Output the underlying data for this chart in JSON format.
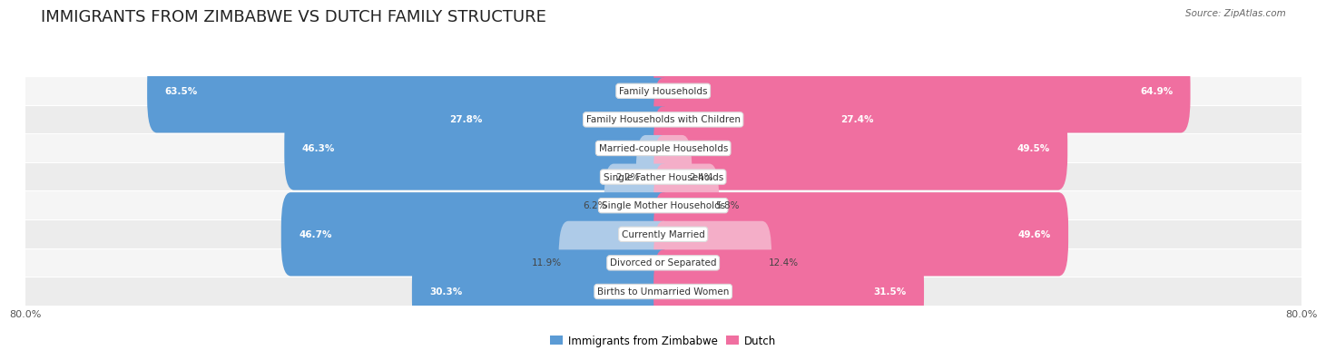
{
  "title": "IMMIGRANTS FROM ZIMBABWE VS DUTCH FAMILY STRUCTURE",
  "source": "Source: ZipAtlas.com",
  "categories": [
    "Family Households",
    "Family Households with Children",
    "Married-couple Households",
    "Single Father Households",
    "Single Mother Households",
    "Currently Married",
    "Divorced or Separated",
    "Births to Unmarried Women"
  ],
  "zimbabwe_values": [
    63.5,
    27.8,
    46.3,
    2.2,
    6.2,
    46.7,
    11.9,
    30.3
  ],
  "dutch_values": [
    64.9,
    27.4,
    49.5,
    2.4,
    5.8,
    49.6,
    12.4,
    31.5
  ],
  "max_val": 80.0,
  "zimbabwe_color_dark": "#5b9bd5",
  "zimbabwe_color_light": "#aecbe8",
  "dutch_color_dark": "#f06fa0",
  "dutch_color_light": "#f4aec8",
  "row_bg_odd": "#ececec",
  "row_bg_even": "#f5f5f5",
  "background_color": "#ffffff",
  "title_fontsize": 13,
  "value_fontsize": 7.5,
  "label_fontsize": 7.5,
  "tick_fontsize": 8,
  "legend_fontsize": 8.5,
  "dark_threshold": 15
}
